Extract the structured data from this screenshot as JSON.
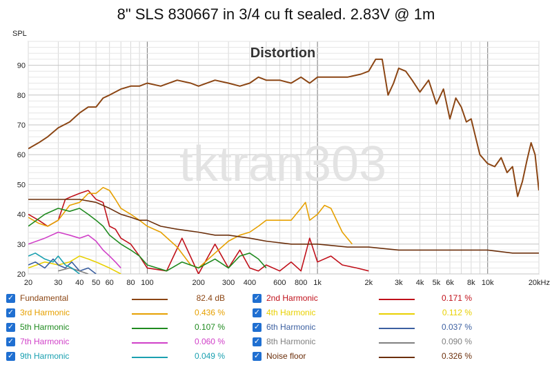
{
  "chart_data": {
    "type": "line",
    "title": "8\" SLS 830667 in 3/4 cu ft sealed. 2.83V @ 1m",
    "subtitle": "Distortion",
    "watermark": "tktran303",
    "ylabel": "SPL",
    "xlabel": "",
    "x_scale": "log",
    "xlim": [
      20,
      20000
    ],
    "ylim": [
      20,
      98
    ],
    "grid": true,
    "x_ticks": [
      {
        "v": 20,
        "label": "20"
      },
      {
        "v": 30,
        "label": "30"
      },
      {
        "v": 40,
        "label": "40"
      },
      {
        "v": 50,
        "label": "50"
      },
      {
        "v": 60,
        "label": "60"
      },
      {
        "v": 80,
        "label": "80"
      },
      {
        "v": 100,
        "label": "100"
      },
      {
        "v": 200,
        "label": "200"
      },
      {
        "v": 300,
        "label": "300"
      },
      {
        "v": 400,
        "label": "400"
      },
      {
        "v": 600,
        "label": "600"
      },
      {
        "v": 800,
        "label": "800"
      },
      {
        "v": 1000,
        "label": "1k"
      },
      {
        "v": 2000,
        "label": "2k"
      },
      {
        "v": 3000,
        "label": "3k"
      },
      {
        "v": 4000,
        "label": "4k"
      },
      {
        "v": 5000,
        "label": "5k"
      },
      {
        "v": 6000,
        "label": "6k"
      },
      {
        "v": 8000,
        "label": "8k"
      },
      {
        "v": 10000,
        "label": "10k"
      },
      {
        "v": 20000,
        "label": "20kHz"
      }
    ],
    "y_ticks": [
      20,
      30,
      40,
      50,
      60,
      70,
      80,
      90
    ],
    "series": [
      {
        "name": "Fundamental",
        "color": "#8b4513",
        "value": "82.4 dB",
        "x": [
          20,
          23,
          26,
          30,
          35,
          40,
          45,
          50,
          55,
          60,
          70,
          80,
          90,
          100,
          120,
          150,
          180,
          200,
          250,
          300,
          350,
          400,
          450,
          500,
          600,
          700,
          800,
          900,
          1000,
          1200,
          1500,
          1800,
          2000,
          2200,
          2400,
          2600,
          2800,
          3000,
          3300,
          3600,
          4000,
          4500,
          5000,
          5500,
          6000,
          6500,
          7000,
          7500,
          8000,
          9000,
          10000,
          11000,
          12000,
          13000,
          14000,
          15000,
          16000,
          17000,
          18000,
          19000,
          20000
        ],
        "y": [
          62,
          64,
          66,
          69,
          71,
          74,
          76,
          76,
          79,
          80,
          82,
          83,
          83,
          84,
          83,
          85,
          84,
          83,
          85,
          84,
          83,
          84,
          86,
          85,
          85,
          84,
          86,
          84,
          86,
          86,
          86,
          87,
          88,
          92,
          92,
          80,
          84,
          89,
          88,
          85,
          81,
          85,
          77,
          82,
          72,
          79,
          76,
          71,
          72,
          60,
          57,
          56,
          59,
          54,
          56,
          46,
          51,
          58,
          64,
          60,
          48
        ]
      },
      {
        "name": "2nd Harmonic",
        "color": "#c0101a",
        "value": "0.171 %",
        "x": [
          20,
          23,
          26,
          30,
          33,
          36,
          40,
          45,
          50,
          55,
          60,
          65,
          70,
          80,
          90,
          100,
          130,
          160,
          200,
          250,
          300,
          350,
          400,
          450,
          500,
          600,
          700,
          800,
          900,
          1000,
          1200,
          1400,
          1700,
          2000
        ],
        "y": [
          40,
          38,
          36,
          38,
          45,
          46,
          47,
          48,
          45,
          44,
          36,
          35,
          32,
          30,
          26,
          22,
          21,
          32,
          20,
          30,
          22,
          28,
          22,
          21,
          23,
          21,
          24,
          21,
          32,
          24,
          26,
          23,
          22,
          21
        ]
      },
      {
        "name": "3rd Harmonic",
        "color": "#e6a000",
        "value": "0.436 %",
        "x": [
          20,
          23,
          26,
          30,
          35,
          40,
          45,
          50,
          55,
          60,
          65,
          70,
          80,
          90,
          100,
          120,
          150,
          180,
          200,
          250,
          300,
          350,
          400,
          450,
          500,
          600,
          700,
          800,
          850,
          900,
          1000,
          1100,
          1200,
          1400,
          1600
        ],
        "y": [
          39,
          37,
          36,
          38,
          43,
          44,
          47,
          47,
          49,
          48,
          45,
          42,
          40,
          38,
          36,
          34,
          29,
          23,
          22,
          27,
          31,
          33,
          34,
          36,
          38,
          38,
          38,
          42,
          44,
          38,
          40,
          43,
          42,
          34,
          30
        ]
      },
      {
        "name": "4th Harmonic",
        "color": "#e8d000",
        "value": "0.112 %",
        "x": [
          20,
          25,
          30,
          35,
          40,
          45,
          50,
          60,
          70
        ],
        "y": [
          22,
          24,
          23,
          24,
          26,
          25,
          24,
          22,
          20
        ]
      },
      {
        "name": "5th Harmonic",
        "color": "#1f8a1f",
        "value": "0.107 %",
        "x": [
          20,
          25,
          30,
          35,
          40,
          45,
          50,
          55,
          60,
          70,
          80,
          90,
          100,
          130,
          160,
          200,
          250,
          300,
          350,
          400,
          450,
          500
        ],
        "y": [
          36,
          40,
          42,
          41,
          42,
          40,
          38,
          36,
          33,
          30,
          28,
          26,
          23,
          21,
          24,
          22,
          25,
          22,
          26,
          27,
          25,
          22
        ]
      },
      {
        "name": "6th Harmonic",
        "color": "#3b5fa0",
        "value": "0.037 %",
        "x": [
          20,
          22,
          25,
          28,
          30,
          33,
          36,
          40,
          45,
          50
        ],
        "y": [
          23,
          24,
          22,
          25,
          23,
          22,
          24,
          21,
          22,
          20
        ]
      },
      {
        "name": "7th Harmonic",
        "color": "#d040c8",
        "value": "0.060 %",
        "x": [
          20,
          25,
          30,
          35,
          40,
          45,
          50,
          55,
          60,
          65,
          70
        ],
        "y": [
          30,
          32,
          34,
          33,
          32,
          33,
          31,
          28,
          26,
          24,
          22
        ]
      },
      {
        "name": "8th Harmonic",
        "color": "#808080",
        "value": "0.090 %",
        "x": [
          30,
          35,
          40,
          45
        ],
        "y": [
          21,
          22,
          21,
          20
        ]
      },
      {
        "name": "9th Harmonic",
        "color": "#1aa0b0",
        "value": "0.049 %",
        "x": [
          20,
          22,
          25,
          28,
          30,
          33,
          36,
          40
        ],
        "y": [
          26,
          27,
          25,
          24,
          26,
          23,
          22,
          20
        ]
      },
      {
        "name": "Noise floor",
        "color": "#6b2e0a",
        "value": "0.326 %",
        "x": [
          20,
          30,
          40,
          50,
          60,
          70,
          80,
          90,
          100,
          120,
          150,
          200,
          250,
          300,
          400,
          500,
          700,
          1000,
          1500,
          2000,
          3000,
          4000,
          6000,
          8000,
          10000,
          14000,
          20000
        ],
        "y": [
          45,
          45,
          45,
          44,
          42,
          40,
          39,
          38,
          38,
          36,
          35,
          34,
          33,
          33,
          32,
          31,
          30,
          30,
          29,
          29,
          28,
          28,
          28,
          28,
          28,
          27,
          27
        ]
      }
    ]
  },
  "legend": {
    "checkmark": "✓"
  }
}
